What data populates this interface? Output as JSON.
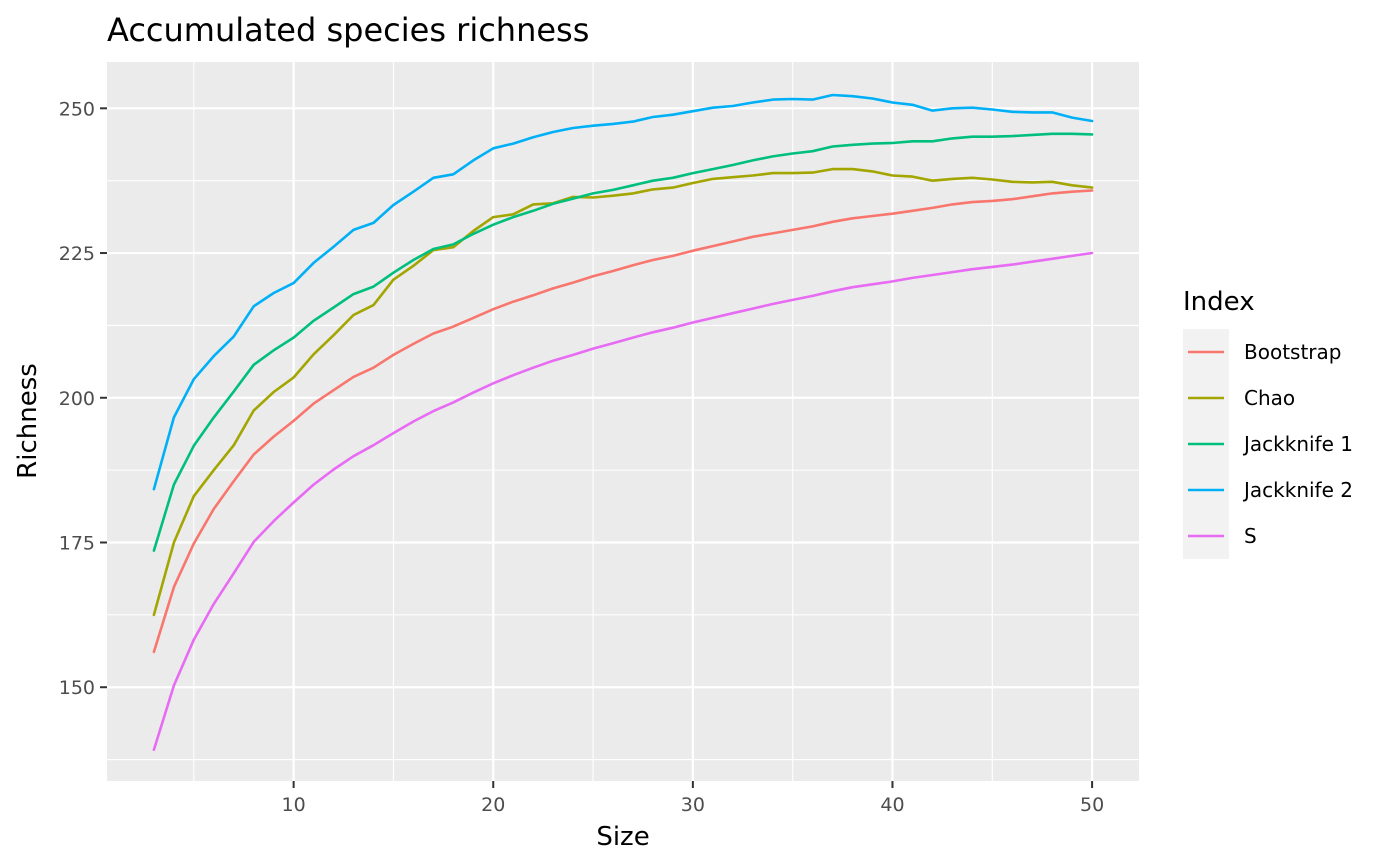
{
  "chart_data": {
    "type": "line",
    "title": "Accumulated species richness",
    "xlabel": "Size",
    "ylabel": "Richness",
    "xlim": [
      0.65,
      52.35
    ],
    "ylim": [
      133.8,
      258.0
    ],
    "x_ticks": [
      10,
      20,
      30,
      40,
      50
    ],
    "x_minor_ticks": [
      5,
      15,
      25,
      35,
      45
    ],
    "y_ticks": [
      150,
      175,
      200,
      225,
      250
    ],
    "y_minor_ticks": [
      137.5,
      162.5,
      187.5,
      212.5,
      237.5
    ],
    "grid": true,
    "legend": {
      "title": "Index",
      "position": "right"
    },
    "x": [
      3,
      4,
      5,
      6,
      7,
      8,
      9,
      10,
      11,
      12,
      13,
      14,
      15,
      16,
      17,
      18,
      19,
      20,
      21,
      22,
      23,
      24,
      25,
      26,
      27,
      28,
      29,
      30,
      31,
      32,
      33,
      34,
      35,
      36,
      37,
      38,
      39,
      40,
      41,
      42,
      43,
      44,
      45,
      46,
      47,
      48,
      49,
      50
    ],
    "series": [
      {
        "name": "Bootstrap",
        "color": "#F8766D",
        "values": [
          156.1,
          167.3,
          174.8,
          180.8,
          185.6,
          190.2,
          193.3,
          196.0,
          199.0,
          201.3,
          203.6,
          205.2,
          207.4,
          209.3,
          211.1,
          212.3,
          213.8,
          215.3,
          216.6,
          217.7,
          218.9,
          219.9,
          221.0,
          221.9,
          222.9,
          223.8,
          224.5,
          225.4,
          226.2,
          227.0,
          227.8,
          228.4,
          229.0,
          229.6,
          230.4,
          231.0,
          231.4,
          231.8,
          232.3,
          232.8,
          233.4,
          233.8,
          234.0,
          234.3,
          234.8,
          235.3,
          235.6,
          235.8
        ]
      },
      {
        "name": "Chao",
        "color": "#A3A500",
        "values": [
          162.5,
          175.0,
          183.0,
          187.5,
          191.8,
          197.8,
          201.0,
          203.5,
          207.5,
          210.8,
          214.3,
          216.0,
          220.4,
          222.8,
          225.5,
          226.0,
          228.8,
          231.2,
          231.7,
          233.4,
          233.6,
          234.7,
          234.6,
          234.9,
          235.3,
          236.0,
          236.3,
          237.1,
          237.8,
          238.1,
          238.4,
          238.8,
          238.8,
          238.9,
          239.5,
          239.5,
          239.1,
          238.4,
          238.2,
          237.5,
          237.8,
          238.0,
          237.7,
          237.3,
          237.2,
          237.3,
          236.7,
          236.3
        ]
      },
      {
        "name": "Jackknife 1",
        "color": "#00BF7D",
        "values": [
          173.6,
          185.0,
          191.7,
          196.6,
          201.1,
          205.7,
          208.2,
          210.4,
          213.3,
          215.6,
          217.9,
          219.2,
          221.6,
          223.8,
          225.7,
          226.5,
          228.3,
          229.9,
          231.2,
          232.3,
          233.5,
          234.4,
          235.3,
          235.9,
          236.7,
          237.5,
          238.0,
          238.8,
          239.5,
          240.2,
          241.0,
          241.7,
          242.2,
          242.6,
          243.4,
          243.7,
          243.9,
          244.0,
          244.3,
          244.3,
          244.8,
          245.1,
          245.1,
          245.2,
          245.4,
          245.6,
          245.6,
          245.5
        ]
      },
      {
        "name": "Jackknife 2",
        "color": "#00B0F6",
        "values": [
          184.2,
          196.6,
          203.2,
          207.2,
          210.6,
          215.8,
          218.1,
          219.8,
          223.3,
          226.1,
          229.0,
          230.2,
          233.3,
          235.6,
          238.0,
          238.6,
          241.0,
          243.1,
          243.9,
          245.0,
          245.9,
          246.6,
          247.0,
          247.3,
          247.7,
          248.5,
          248.9,
          249.5,
          250.1,
          250.4,
          251.0,
          251.5,
          251.6,
          251.5,
          252.3,
          252.1,
          251.7,
          251.0,
          250.6,
          249.6,
          250.0,
          250.1,
          249.8,
          249.4,
          249.3,
          249.3,
          248.4,
          247.8
        ]
      },
      {
        "name": "S",
        "color": "#E76BF3",
        "values": [
          139.2,
          150.3,
          158.2,
          164.4,
          169.7,
          175.1,
          178.7,
          181.9,
          185.0,
          187.6,
          189.9,
          191.8,
          193.9,
          195.9,
          197.7,
          199.2,
          200.9,
          202.5,
          203.9,
          205.2,
          206.4,
          207.4,
          208.5,
          209.4,
          210.4,
          211.3,
          212.1,
          213.0,
          213.8,
          214.6,
          215.4,
          216.2,
          216.9,
          217.6,
          218.4,
          219.1,
          219.6,
          220.1,
          220.7,
          221.2,
          221.7,
          222.2,
          222.6,
          223.0,
          223.5,
          224.0,
          224.5,
          225.0
        ]
      }
    ]
  }
}
